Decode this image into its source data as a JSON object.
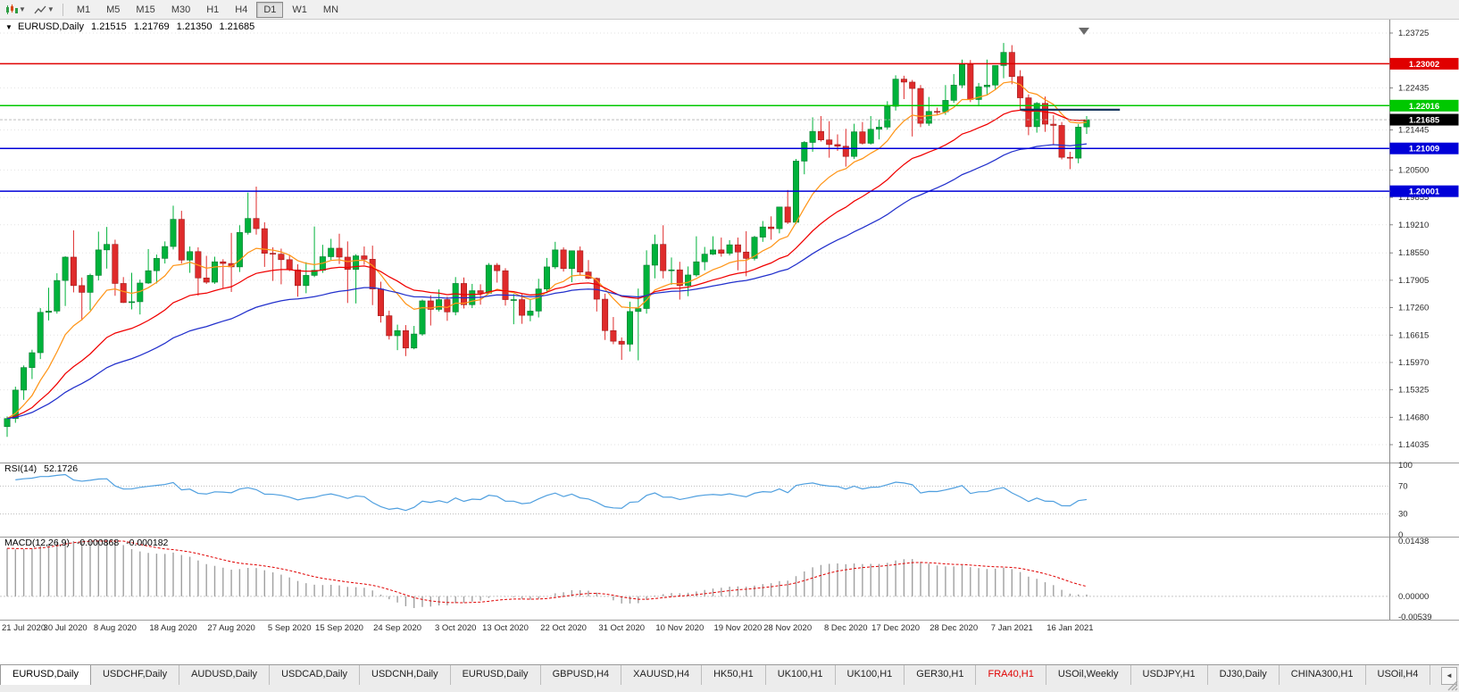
{
  "toolbar": {
    "timeframes": [
      "M1",
      "M5",
      "M15",
      "M30",
      "H1",
      "H4",
      "D1",
      "W1",
      "MN"
    ],
    "active": "D1"
  },
  "chart_header": {
    "dropdown_marker": "▼",
    "symbol": "EURUSD,Daily",
    "open": "1.21515",
    "high": "1.21769",
    "low": "1.21350",
    "close": "1.21685"
  },
  "rsi_panel": {
    "label": "RSI(14)",
    "value": "52.1726",
    "axis_labels": [
      "100",
      "70",
      "30",
      "0"
    ],
    "axis_values": [
      100,
      70,
      30,
      0
    ],
    "level_lines": [
      70,
      30
    ],
    "line_color": "#4f9fdf"
  },
  "macd_panel": {
    "label": "MACD(12,26,9)",
    "value_main": "-0.000868",
    "value_signal": "-0.000182",
    "axis_labels": [
      "0.01438",
      "0.00000",
      "-0.00539"
    ],
    "axis_values": [
      0.01438,
      0,
      -0.00539
    ],
    "hist_color": "#a0a0a0",
    "signal_color": "#e00000"
  },
  "price_axis": {
    "ticks": [
      "1.23725",
      "1.22435",
      "1.21445",
      "1.20500",
      "1.19855",
      "1.19210",
      "1.18550",
      "1.17905",
      "1.17260",
      "1.16615",
      "1.15970",
      "1.15325",
      "1.14680",
      "1.14035"
    ]
  },
  "date_axis": {
    "labels": [
      "21 Jul 2020",
      "30 Jul 2020",
      "8 Aug 2020",
      "18 Aug 2020",
      "27 Aug 2020",
      "5 Sep 2020",
      "15 Sep 2020",
      "24 Sep 2020",
      "3 Oct 2020",
      "13 Oct 2020",
      "22 Oct 2020",
      "31 Oct 2020",
      "10 Nov 2020",
      "19 Nov 2020",
      "28 Nov 2020",
      "8 Dec 2020",
      "17 Dec 2020",
      "28 Dec 2020",
      "7 Jan 2021",
      "16 Jan 2021"
    ],
    "candle_indices": [
      0,
      7,
      13,
      20,
      27,
      34,
      40,
      47,
      54,
      60,
      67,
      74,
      81,
      88,
      94,
      101,
      107,
      114,
      121,
      128
    ]
  },
  "tabs": {
    "scroll_left_icon": "◄",
    "items": [
      {
        "label": "EURUSD,Daily",
        "active": true
      },
      {
        "label": "USDCHF,Daily"
      },
      {
        "label": "AUDUSD,Daily"
      },
      {
        "label": "USDCAD,Daily"
      },
      {
        "label": "USDCNH,Daily"
      },
      {
        "label": "EURUSD,Daily"
      },
      {
        "label": "GBPUSD,H4"
      },
      {
        "label": "XAUUSD,H4"
      },
      {
        "label": "HK50,H1"
      },
      {
        "label": "UK100,H1"
      },
      {
        "label": "UK100,H1"
      },
      {
        "label": "GER30,H1"
      },
      {
        "label": "FRA40,H1",
        "alert": true
      },
      {
        "label": "USOil,Weekly"
      },
      {
        "label": "USDJPY,H1"
      },
      {
        "label": "DJ30,Daily"
      },
      {
        "label": "CHINA300,H1"
      },
      {
        "label": "USOil,H4"
      }
    ]
  },
  "chart_data": {
    "type": "candlestick",
    "symbol": "EURUSD",
    "timeframe": "Daily",
    "up_color": "#00b23b",
    "down_color": "#df2b2b",
    "up_stroke": "#067a2f",
    "down_stroke": "#9e1a1a",
    "ylim": [
      1.138,
      1.2394
    ],
    "ohlc": [
      [
        1.1446,
        1.147,
        1.1422,
        1.1465
      ],
      [
        1.1465,
        1.154,
        1.1455,
        1.1532
      ],
      [
        1.1532,
        1.159,
        1.1509,
        1.1585
      ],
      [
        1.1585,
        1.1627,
        1.1558,
        1.162
      ],
      [
        1.162,
        1.1725,
        1.1605,
        1.1715
      ],
      [
        1.1715,
        1.1773,
        1.1696,
        1.1718
      ],
      [
        1.1718,
        1.1807,
        1.1712,
        1.179
      ],
      [
        1.179,
        1.1847,
        1.173,
        1.1845
      ],
      [
        1.1845,
        1.1908,
        1.1762,
        1.1778
      ],
      [
        1.1778,
        1.1797,
        1.1696,
        1.1762
      ],
      [
        1.1762,
        1.1806,
        1.172,
        1.1802
      ],
      [
        1.1802,
        1.1905,
        1.179,
        1.1862
      ],
      [
        1.1862,
        1.1916,
        1.1818,
        1.1875
      ],
      [
        1.1875,
        1.1886,
        1.1754,
        1.1783
      ],
      [
        1.1783,
        1.1798,
        1.1737,
        1.1738
      ],
      [
        1.1738,
        1.1808,
        1.1722,
        1.174
      ],
      [
        1.174,
        1.1792,
        1.171,
        1.1784
      ],
      [
        1.1784,
        1.1864,
        1.1782,
        1.1813
      ],
      [
        1.1813,
        1.1851,
        1.1783,
        1.1842
      ],
      [
        1.1842,
        1.1882,
        1.183,
        1.187
      ],
      [
        1.187,
        1.1966,
        1.1863,
        1.1934
      ],
      [
        1.1934,
        1.1954,
        1.183,
        1.1838
      ],
      [
        1.1838,
        1.187,
        1.1808,
        1.1858
      ],
      [
        1.1858,
        1.1868,
        1.1754,
        1.1796
      ],
      [
        1.1796,
        1.1848,
        1.1782,
        1.1786
      ],
      [
        1.1786,
        1.1846,
        1.1782,
        1.1834
      ],
      [
        1.1834,
        1.184,
        1.177,
        1.183
      ],
      [
        1.183,
        1.1902,
        1.1763,
        1.1822
      ],
      [
        1.1822,
        1.192,
        1.181,
        1.1903
      ],
      [
        1.1903,
        1.1997,
        1.1898,
        1.1936
      ],
      [
        1.1936,
        1.2011,
        1.1898,
        1.1912
      ],
      [
        1.1912,
        1.1927,
        1.1822,
        1.1854
      ],
      [
        1.1854,
        1.1868,
        1.1789,
        1.1852
      ],
      [
        1.1852,
        1.1865,
        1.1781,
        1.1839
      ],
      [
        1.1839,
        1.1849,
        1.1812,
        1.1815
      ],
      [
        1.1815,
        1.1828,
        1.1752,
        1.1778
      ],
      [
        1.1778,
        1.1833,
        1.176,
        1.1802
      ],
      [
        1.1802,
        1.1917,
        1.1798,
        1.1814
      ],
      [
        1.1814,
        1.1874,
        1.1808,
        1.1846
      ],
      [
        1.1846,
        1.1888,
        1.1838,
        1.1866
      ],
      [
        1.1866,
        1.19,
        1.1829,
        1.1845
      ],
      [
        1.1845,
        1.1882,
        1.1737,
        1.1816
      ],
      [
        1.1816,
        1.1852,
        1.1736,
        1.1848
      ],
      [
        1.1848,
        1.187,
        1.1827,
        1.184
      ],
      [
        1.184,
        1.1872,
        1.1732,
        1.177
      ],
      [
        1.177,
        1.1787,
        1.1691,
        1.1707
      ],
      [
        1.1707,
        1.1719,
        1.1651,
        1.166
      ],
      [
        1.166,
        1.1686,
        1.1626,
        1.1672
      ],
      [
        1.1672,
        1.1685,
        1.1612,
        1.1631
      ],
      [
        1.1631,
        1.1683,
        1.1628,
        1.1664
      ],
      [
        1.1664,
        1.1745,
        1.166,
        1.1742
      ],
      [
        1.1742,
        1.1755,
        1.1684,
        1.1722
      ],
      [
        1.1722,
        1.1769,
        1.1717,
        1.1745
      ],
      [
        1.1745,
        1.1752,
        1.1695,
        1.1716
      ],
      [
        1.1716,
        1.1798,
        1.1708,
        1.1783
      ],
      [
        1.1783,
        1.1797,
        1.1724,
        1.1733
      ],
      [
        1.1733,
        1.1782,
        1.1725,
        1.1766
      ],
      [
        1.1766,
        1.1781,
        1.1733,
        1.176
      ],
      [
        1.176,
        1.1831,
        1.1758,
        1.1826
      ],
      [
        1.1826,
        1.1831,
        1.1785,
        1.1813
      ],
      [
        1.1813,
        1.1819,
        1.1731,
        1.1745
      ],
      [
        1.1745,
        1.1758,
        1.1687,
        1.1745
      ],
      [
        1.1745,
        1.1758,
        1.1688,
        1.1708
      ],
      [
        1.1708,
        1.1747,
        1.1694,
        1.1718
      ],
      [
        1.1718,
        1.1794,
        1.1703,
        1.177
      ],
      [
        1.177,
        1.1843,
        1.176,
        1.1822
      ],
      [
        1.1822,
        1.1881,
        1.1817,
        1.1862
      ],
      [
        1.1862,
        1.1868,
        1.1811,
        1.1818
      ],
      [
        1.1818,
        1.186,
        1.1786,
        1.186
      ],
      [
        1.186,
        1.187,
        1.1802,
        1.181
      ],
      [
        1.181,
        1.1838,
        1.1793,
        1.1795
      ],
      [
        1.1795,
        1.1797,
        1.1717,
        1.1746
      ],
      [
        1.1746,
        1.1759,
        1.165,
        1.1672
      ],
      [
        1.1672,
        1.1704,
        1.164,
        1.1647
      ],
      [
        1.1647,
        1.1656,
        1.1603,
        1.164
      ],
      [
        1.164,
        1.174,
        1.1623,
        1.1717
      ],
      [
        1.1717,
        1.1771,
        1.1602,
        1.1724
      ],
      [
        1.1724,
        1.1861,
        1.1712,
        1.1826
      ],
      [
        1.1826,
        1.1898,
        1.1795,
        1.1875
      ],
      [
        1.1875,
        1.192,
        1.1795,
        1.1813
      ],
      [
        1.1813,
        1.1844,
        1.178,
        1.1815
      ],
      [
        1.1815,
        1.1834,
        1.1745,
        1.1778
      ],
      [
        1.1778,
        1.1823,
        1.1753,
        1.1803
      ],
      [
        1.1803,
        1.1894,
        1.1799,
        1.1834
      ],
      [
        1.1834,
        1.1869,
        1.1814,
        1.1852
      ],
      [
        1.1852,
        1.1894,
        1.185,
        1.1862
      ],
      [
        1.1862,
        1.1891,
        1.1846,
        1.1854
      ],
      [
        1.1854,
        1.1885,
        1.1849,
        1.1874
      ],
      [
        1.1874,
        1.1891,
        1.1814,
        1.1857
      ],
      [
        1.1857,
        1.1906,
        1.18,
        1.1842
      ],
      [
        1.1842,
        1.1895,
        1.1837,
        1.1892
      ],
      [
        1.1892,
        1.193,
        1.1881,
        1.1916
      ],
      [
        1.1916,
        1.1941,
        1.1886,
        1.1912
      ],
      [
        1.1912,
        1.1963,
        1.1901,
        1.1963
      ],
      [
        1.1963,
        1.2003,
        1.1923,
        1.1927
      ],
      [
        1.1927,
        1.2076,
        1.1923,
        1.2071
      ],
      [
        1.2071,
        1.2118,
        1.204,
        1.2115
      ],
      [
        1.2115,
        1.2174,
        1.2093,
        1.2141
      ],
      [
        1.2141,
        1.2177,
        1.2117,
        1.2121
      ],
      [
        1.2121,
        1.2165,
        1.2079,
        1.211
      ],
      [
        1.211,
        1.2134,
        1.2095,
        1.2106
      ],
      [
        1.2106,
        1.2147,
        1.2058,
        1.2082
      ],
      [
        1.2082,
        1.2159,
        1.2076,
        1.214
      ],
      [
        1.214,
        1.2163,
        1.211,
        1.2113
      ],
      [
        1.2113,
        1.2177,
        1.211,
        1.2146
      ],
      [
        1.2146,
        1.2169,
        1.2122,
        1.2151
      ],
      [
        1.2151,
        1.2212,
        1.2145,
        1.22
      ],
      [
        1.22,
        1.2273,
        1.219,
        1.2264
      ],
      [
        1.2264,
        1.2272,
        1.2217,
        1.2257
      ],
      [
        1.2257,
        1.2262,
        1.2129,
        1.2242
      ],
      [
        1.2242,
        1.225,
        1.2151,
        1.216
      ],
      [
        1.216,
        1.2222,
        1.2154,
        1.2188
      ],
      [
        1.2188,
        1.2197,
        1.218,
        1.2187
      ],
      [
        1.2187,
        1.225,
        1.218,
        1.2214
      ],
      [
        1.2214,
        1.2276,
        1.2208,
        1.225
      ],
      [
        1.225,
        1.231,
        1.2243,
        1.2299
      ],
      [
        1.2299,
        1.2309,
        1.221,
        1.2216
      ],
      [
        1.2216,
        1.2255,
        1.22,
        1.2246
      ],
      [
        1.2246,
        1.231,
        1.2228,
        1.225
      ],
      [
        1.225,
        1.2295,
        1.224,
        1.2296
      ],
      [
        1.2296,
        1.2349,
        1.2266,
        1.2327
      ],
      [
        1.2327,
        1.2344,
        1.2252,
        1.227
      ],
      [
        1.227,
        1.2285,
        1.219,
        1.222
      ],
      [
        1.222,
        1.2228,
        1.2132,
        1.2152
      ],
      [
        1.2152,
        1.221,
        1.2138,
        1.2207
      ],
      [
        1.2207,
        1.2223,
        1.214,
        1.2158
      ],
      [
        1.2158,
        1.2179,
        1.211,
        1.2155
      ],
      [
        1.2155,
        1.2163,
        1.2075,
        1.208
      ],
      [
        1.208,
        1.2093,
        1.2052,
        1.2078
      ],
      [
        1.2078,
        1.2158,
        1.2066,
        1.2151
      ],
      [
        1.21515,
        1.21769,
        1.2135,
        1.21685
      ]
    ],
    "moving_averages": [
      {
        "name": "fast",
        "period": 10,
        "color": "#ff9518"
      },
      {
        "name": "medium",
        "period": 24,
        "color": "#f00000"
      },
      {
        "name": "slow",
        "period": 45,
        "color": "#2230cc"
      }
    ],
    "horizontal_levels": [
      {
        "price": 1.23002,
        "label": "1.23002",
        "color": "#e00000"
      },
      {
        "price": 1.22016,
        "label": "1.22016",
        "color": "#00c800"
      },
      {
        "price": 1.21009,
        "label": "1.21009",
        "color": "#0000d8"
      },
      {
        "price": 1.20001,
        "label": "1.20001",
        "color": "#0000d8"
      }
    ],
    "current_price": {
      "value": 1.21685,
      "label": "1.21685",
      "tag_color": "#000000"
    },
    "trendline": {
      "price": 1.2192,
      "from_index": 122,
      "to_index": 134,
      "color": "#16365c"
    },
    "rsi": {
      "period": 14,
      "last_value": 52.1726
    },
    "macd": {
      "fast": 12,
      "slow": 26,
      "signal": 9,
      "last_main": -0.000868,
      "last_signal": -0.000182
    }
  }
}
